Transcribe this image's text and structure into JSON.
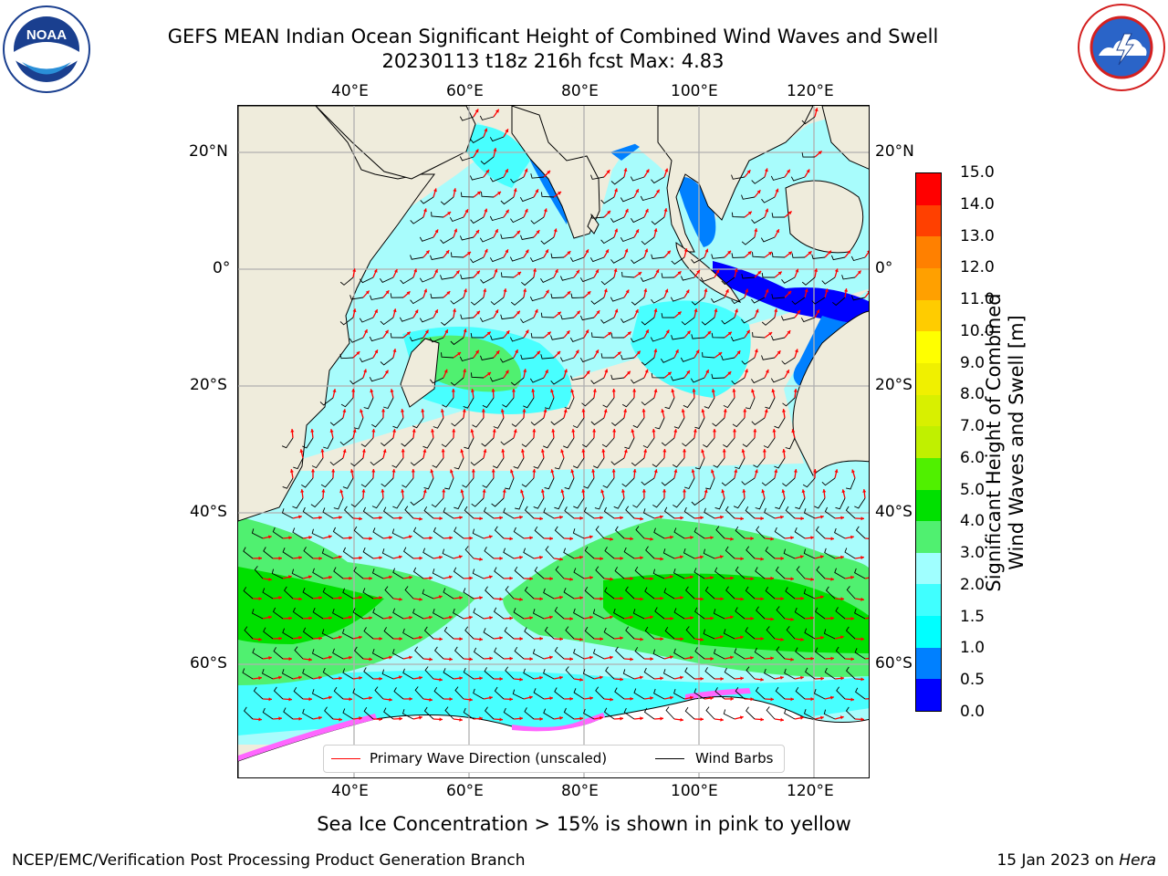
{
  "header": {
    "title_line1": "GEFS MEAN Indian Ocean Significant Height of Combined Wind Waves and Swell",
    "title_line2": "20230113 t18z 216h fcst   Max: 4.83"
  },
  "logos": {
    "noaa": {
      "text": "NOAA",
      "ring_text": "NATIONAL OCEANIC AND ATMOSPHERIC ADMINISTRATION · U.S. DEPARTMENT OF COMMERCE"
    },
    "nws": {
      "ring_text": "NATIONAL WEATHER SERVICE"
    }
  },
  "map": {
    "lon_ticks": [
      "40°E",
      "60°E",
      "80°E",
      "100°E",
      "120°E"
    ],
    "lat_ticks": [
      "20°N",
      "0°",
      "20°S",
      "40°S",
      "60°S"
    ],
    "legend": {
      "primary_wave": "Primary Wave Direction (unscaled)",
      "wind_barbs": "Wind Barbs"
    },
    "colors": {
      "land": "#efecdc",
      "wave_arrow": "#ff0000",
      "barb": "#000000",
      "sea_ice": "#ff66ff"
    }
  },
  "colorbar": {
    "label_line1": "Significant Height of Combined",
    "label_line2": "Wind Waves and Swell [m]",
    "ticks": [
      "0.0",
      "0.5",
      "1.0",
      "1.5",
      "2.0",
      "3.0",
      "4.0",
      "5.0",
      "6.0",
      "7.0",
      "8.0",
      "9.0",
      "10.0",
      "11.0",
      "12.0",
      "13.0",
      "14.0",
      "15.0"
    ],
    "colors": [
      "#0000ff",
      "#0080ff",
      "#00ffff",
      "#40ffff",
      "#a0ffff",
      "#50f070",
      "#00e000",
      "#50f000",
      "#c0f000",
      "#d8f000",
      "#f0f000",
      "#ffff00",
      "#ffcc00",
      "#ffa000",
      "#ff8000",
      "#ff4000",
      "#ff0000"
    ]
  },
  "footer": {
    "sea_ice_note": "Sea Ice Concentration > 15% is shown in pink to yellow",
    "branch": "NCEP/EMC/Verification Post Processing Product Generation Branch",
    "date": "15 Jan 2023 on",
    "machine": "Hera"
  }
}
